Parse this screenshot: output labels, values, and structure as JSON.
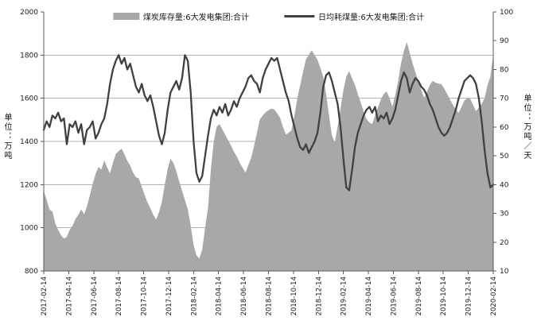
{
  "chart_data": {
    "type": "area+line",
    "title": "",
    "legend_position": "top-center",
    "grid": "horizontal",
    "x_tick_labels": [
      "2017-02-14",
      "2017-04-14",
      "2017-06-14",
      "2017-08-14",
      "2017-10-14",
      "2017-12-14",
      "2018-02-14",
      "2018-04-14",
      "2018-06-14",
      "2018-08-14",
      "2018-10-14",
      "2018-12-14",
      "2019-02-14",
      "2019-04-14",
      "2019-06-14",
      "2019-08-14",
      "2019-10-14",
      "2019-12-14",
      "2020-02-14"
    ],
    "left_axis": {
      "title": "单位：万吨",
      "min": 800,
      "max": 2000,
      "ticks": [
        2000,
        1800,
        1600,
        1400,
        1200,
        1000,
        800
      ]
    },
    "right_axis": {
      "title": "单位：万吨／天",
      "min": 10,
      "max": 100,
      "ticks": [
        100,
        90,
        80,
        70,
        60,
        50,
        40,
        30,
        20,
        10
      ]
    },
    "series": [
      {
        "name": "煤炭库存量:6大发电集团:合计",
        "type": "area",
        "axis": "left",
        "color": "#a8a8a8",
        "values": [
          1170,
          1130,
          1085,
          1075,
          1020,
          990,
          965,
          950,
          958,
          990,
          1010,
          1040,
          1060,
          1085,
          1062,
          1100,
          1150,
          1205,
          1250,
          1282,
          1270,
          1312,
          1280,
          1252,
          1300,
          1342,
          1355,
          1367,
          1340,
          1310,
          1288,
          1255,
          1235,
          1228,
          1190,
          1152,
          1118,
          1090,
          1060,
          1038,
          1072,
          1120,
          1200,
          1272,
          1320,
          1300,
          1262,
          1215,
          1172,
          1128,
          1085,
          1010,
          920,
          872,
          858,
          900,
          1000,
          1090,
          1270,
          1400,
          1468,
          1480,
          1455,
          1430,
          1405,
          1380,
          1352,
          1330,
          1302,
          1278,
          1256,
          1290,
          1325,
          1380,
          1440,
          1502,
          1520,
          1535,
          1545,
          1552,
          1548,
          1530,
          1510,
          1468,
          1432,
          1440,
          1452,
          1520,
          1600,
          1660,
          1722,
          1780,
          1802,
          1822,
          1800,
          1778,
          1740,
          1700,
          1620,
          1520,
          1428,
          1395,
          1470,
          1552,
          1638,
          1700,
          1726,
          1692,
          1662,
          1620,
          1580,
          1540,
          1505,
          1488,
          1480,
          1520,
          1558,
          1595,
          1620,
          1632,
          1600,
          1562,
          1615,
          1680,
          1762,
          1820,
          1860,
          1810,
          1762,
          1720,
          1680,
          1640,
          1602,
          1630,
          1662,
          1680,
          1672,
          1668,
          1665,
          1645,
          1620,
          1595,
          1570,
          1548,
          1532,
          1560,
          1590,
          1600,
          1598,
          1570,
          1540,
          1558,
          1575,
          1600,
          1660,
          1700,
          1800
        ]
      },
      {
        "name": "日均耗煤量:6大发电集团:合计",
        "type": "line",
        "axis": "right",
        "color": "#404040",
        "values": [
          59,
          62,
          60,
          64,
          63,
          65,
          62,
          63,
          54,
          61,
          60,
          62,
          58,
          61,
          54,
          59,
          60,
          62,
          56,
          58,
          61,
          63,
          68,
          75,
          80,
          83,
          85,
          82,
          84,
          80,
          82,
          78,
          74,
          72,
          75,
          71,
          69,
          71,
          67,
          62,
          57,
          54,
          58,
          66,
          72,
          74,
          76,
          73,
          77,
          85,
          83,
          72,
          55,
          44,
          41,
          43,
          50,
          57,
          63,
          66,
          64,
          67,
          65,
          68,
          64,
          66,
          69,
          67,
          70,
          72,
          74,
          77,
          78,
          76,
          75,
          72,
          77,
          80,
          82,
          84,
          83,
          84,
          80,
          76,
          72,
          69,
          64,
          60,
          56,
          53,
          52,
          54,
          51,
          53,
          55,
          58,
          65,
          74,
          78,
          79,
          76,
          72,
          68,
          60,
          49,
          39,
          38,
          45,
          53,
          58,
          61,
          64,
          66,
          67,
          65,
          67,
          62,
          64,
          63,
          65,
          61,
          63,
          66,
          71,
          76,
          79,
          77,
          72,
          75,
          77,
          76,
          74,
          73,
          71,
          68,
          66,
          63,
          60,
          58,
          57,
          58,
          60,
          63,
          66,
          70,
          73,
          76,
          77,
          78,
          77,
          75,
          70,
          62,
          52,
          44,
          39,
          40
        ]
      }
    ],
    "colors": {
      "gridline": "#b3b3b3",
      "axis": "#595959",
      "tick_text": "#1a1a1a"
    }
  }
}
